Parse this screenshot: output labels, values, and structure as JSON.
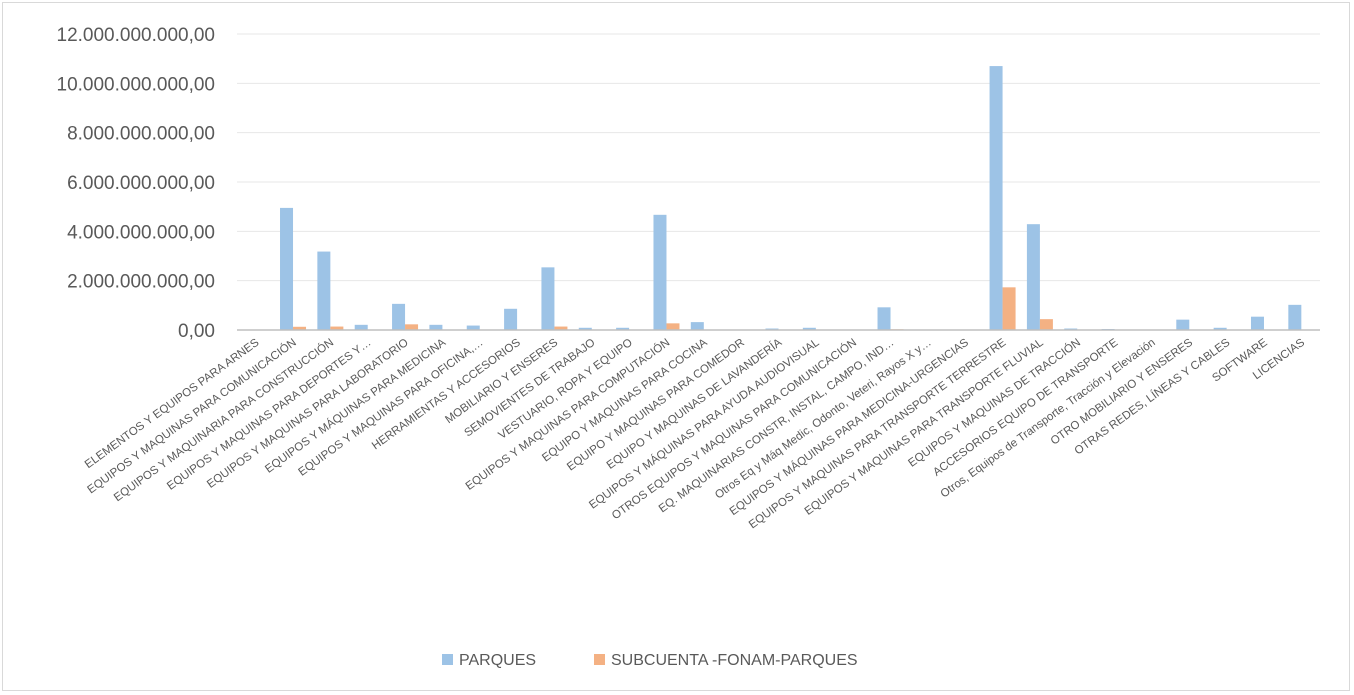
{
  "chart_data": {
    "type": "bar",
    "categories": [
      "ELEMENTOS Y EQUIPOS PARA ARNES",
      "EQUIPOS Y MAQUINAS PARA COMUNICACIÓN",
      "EQUIPOS Y MAQUINARIA PARA CONSTRUCCIÓN",
      "EQUIPOS Y MAQUINAS PARA DEPORTES Y…",
      "EQUIPOS Y MAQUINAS PARA LABORATORIO",
      "EQUIPOS Y MÁQUINAS PARA MEDICINA",
      "EQUIPOS Y MAQUINAS PARA OFICINA,…",
      "HERRAMIENTAS Y ACCESORIOS",
      "MOBILIARIO Y ENSERES",
      "SEMOVIENTES DE TRABAJO",
      "VESTUARIO, ROPA Y EQUIPO",
      "EQUIPOS Y MAQUINAS PARA COMPUTACIÓN",
      "EQUIPO Y MAQUINAS PARA COCINA",
      "EQUIPO Y MAQUINAS  PARA COMEDOR",
      "EQUIPO Y MAQUINAS  DE LAVANDERÍA",
      "EQUIPOS Y MÁQUINAS PARA AYUDA AUDIOVISUAL",
      "OTROS EQUIPOS Y MAQUINAS PARA COMUNICACIÓN",
      "EQ. MAQUINARIAS CONSTR, INSTAL, CAMPO, IND…",
      "Otros Eq y Máq Medic, Odonto, Veteri, Rayos X y…",
      "EQUIPOS Y MÁQUINAS PARA MEDICINA-URGENCIAS",
      "EQUIPOS Y MAQUINAS PARA TRANSPORTE TERRESTRE",
      "EQUIPOS Y MAQUINAS PARA TRANSPORTE FLUVIAL",
      "EQUIPOS Y MAQUINAS DE TRACCIÓN",
      "ACCESORIOS EQUIPO DE TRANSPORTE",
      "Otros, Equipos de Transporte, Tracción y Elevación",
      "OTRO MOBILIARIO Y ENSERES",
      "OTRAS REDES, LÍNEAS Y CABLES",
      "SOFTWARE",
      "LICENCIAS"
    ],
    "series": [
      {
        "name": "PARQUES",
        "color": "#9dc3e6",
        "values": [
          0,
          4950000000,
          3180000000,
          210000000,
          1060000000,
          210000000,
          180000000,
          860000000,
          2540000000,
          90000000,
          90000000,
          4670000000,
          320000000,
          20000000,
          60000000,
          90000000,
          20000000,
          920000000,
          20000000,
          20000000,
          10700000000,
          4290000000,
          60000000,
          40000000,
          20000000,
          420000000,
          90000000,
          540000000,
          1020000000
        ]
      },
      {
        "name": "SUBCUENTA -FONAM-PARQUES",
        "color": "#f4b183",
        "values": [
          0,
          130000000,
          140000000,
          0,
          230000000,
          0,
          0,
          0,
          140000000,
          0,
          0,
          270000000,
          0,
          0,
          0,
          0,
          0,
          30000000,
          0,
          0,
          1730000000,
          440000000,
          0,
          0,
          0,
          0,
          0,
          0,
          0
        ]
      }
    ],
    "ylim": [
      0,
      12000000000
    ],
    "yticks": [
      0,
      2000000000,
      4000000000,
      6000000000,
      8000000000,
      10000000000,
      12000000000
    ],
    "ytick_labels": [
      "0,00",
      "2.000.000.000,00",
      "4.000.000.000,00",
      "6.000.000.000,00",
      "8.000.000.000,00",
      "10.000.000.000,00",
      "12.000.000.000,00"
    ],
    "title": "",
    "xlabel": "",
    "ylabel": "",
    "grid": true,
    "legend": "bottom"
  },
  "colors": {
    "grid": "#e7e7e7",
    "axis": "#bfbfbf",
    "text": "#595959"
  }
}
